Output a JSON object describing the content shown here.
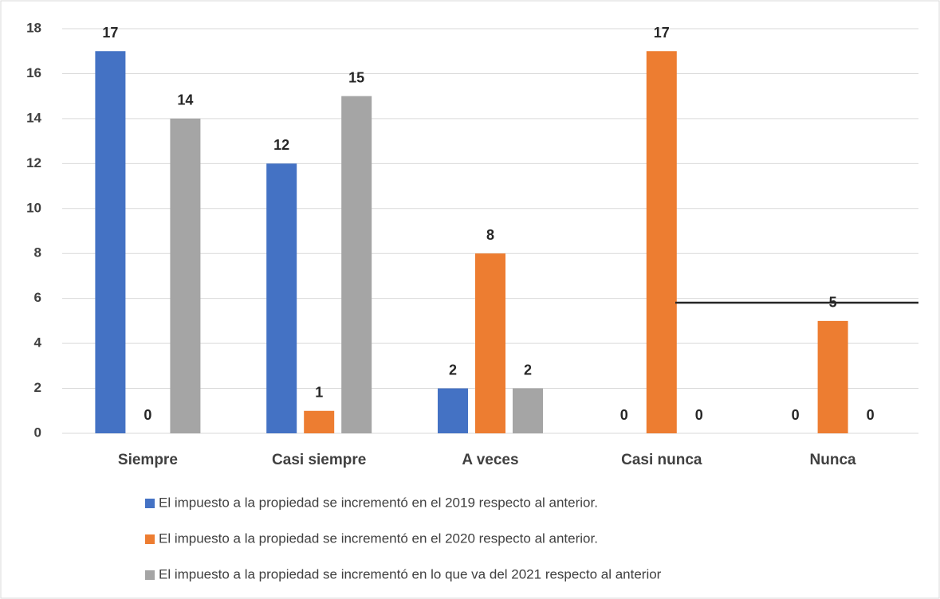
{
  "chart_data": {
    "type": "bar",
    "categories": [
      "Siempre",
      "Casi siempre",
      "A veces",
      "Casi nunca",
      "Nunca"
    ],
    "series": [
      {
        "name": "El impuesto a la propiedad se incrementó en el 2019 respecto al anterior.",
        "color": "#4472c4",
        "values": [
          17,
          12,
          2,
          0,
          0
        ]
      },
      {
        "name": "El impuesto a la propiedad se incrementó en el 2020 respecto al anterior.",
        "color": "#ed7d31",
        "values": [
          0,
          1,
          8,
          17,
          5
        ]
      },
      {
        "name": "El impuesto a la propiedad se incrementó en lo que va del 2021 respecto al anterior",
        "color": "#a5a5a5",
        "values": [
          14,
          15,
          2,
          0,
          0
        ]
      }
    ],
    "ylim": [
      0,
      18
    ],
    "yticks": [
      0,
      2,
      4,
      6,
      8,
      10,
      12,
      14,
      16,
      18
    ],
    "grid": true,
    "legend": "bottom"
  }
}
